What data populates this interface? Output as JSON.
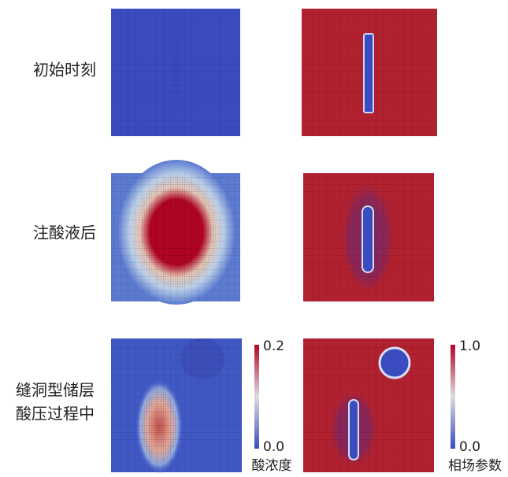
{
  "rows": [
    {
      "label_lines": [
        "初始时刻"
      ]
    },
    {
      "label_lines": [
        "注酸液后"
      ]
    },
    {
      "label_lines": [
        "缝洞型储层",
        "酸压过程中"
      ]
    }
  ],
  "colorbars": [
    {
      "top": "0.2",
      "bottom": "0.0",
      "title": "酸浓度"
    },
    {
      "top": "1.0",
      "bottom": "0.0",
      "title": "相场参数"
    }
  ]
}
